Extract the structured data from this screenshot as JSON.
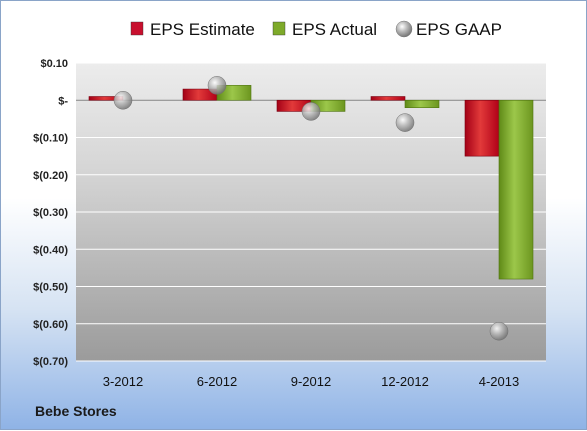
{
  "company": "Bebe Stores",
  "legend": [
    {
      "name": "EPS Estimate",
      "icon": "red-bar-icon",
      "color": "#c8102e"
    },
    {
      "name": "EPS Actual",
      "icon": "green-bar-icon",
      "color": "#7eaa2a"
    },
    {
      "name": "EPS GAAP",
      "icon": "gray-circle-icon",
      "color": "#9a9a9a"
    }
  ],
  "chart_data": {
    "type": "bar",
    "title": "",
    "xlabel": "",
    "ylabel": "",
    "categories": [
      "3-2012",
      "6-2012",
      "9-2012",
      "12-2012",
      "4-2013"
    ],
    "series": [
      {
        "name": "EPS Estimate",
        "type": "bar",
        "values": [
          0.01,
          0.03,
          -0.03,
          0.01,
          -0.15
        ]
      },
      {
        "name": "EPS Actual",
        "type": "bar",
        "values": [
          null,
          0.04,
          -0.03,
          -0.02,
          -0.48
        ]
      },
      {
        "name": "EPS GAAP",
        "type": "scatter",
        "values": [
          0.0,
          0.04,
          -0.03,
          -0.06,
          -0.62
        ]
      }
    ],
    "ylim": [
      -0.7,
      0.1
    ],
    "yticks": [
      0.1,
      0.0,
      -0.1,
      -0.2,
      -0.3,
      -0.4,
      -0.5,
      -0.6,
      -0.7
    ],
    "ytick_labels": [
      "$0.10",
      "$-",
      "$(0.10)",
      "$(0.20)",
      "$(0.30)",
      "$(0.40)",
      "$(0.50)",
      "$(0.60)",
      "$(0.70)"
    ],
    "grid": true,
    "legend_position": "top"
  }
}
